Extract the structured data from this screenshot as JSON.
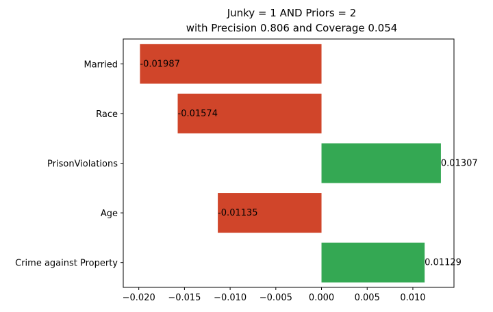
{
  "chart_data": {
    "type": "bar",
    "orientation": "horizontal",
    "title": [
      "Junky = 1 AND Priors = 2",
      "with Precision 0.806 and Coverage 0.054"
    ],
    "categories": [
      "Married",
      "Race",
      "PrisonViolations",
      "Age",
      "Crime against Property"
    ],
    "values": [
      -0.01987,
      -0.01574,
      0.01307,
      -0.01135,
      0.01129
    ],
    "value_labels": [
      "-0.01987",
      "-0.01574",
      "0.01307",
      "-0.01135",
      "0.01129"
    ],
    "xlim": [
      -0.0217,
      0.0145
    ],
    "xticks": [
      -0.02,
      -0.015,
      -0.01,
      -0.005,
      0.0,
      0.005,
      0.01
    ],
    "xtick_labels": [
      "−0.020",
      "−0.015",
      "−0.010",
      "−0.005",
      "0.000",
      "0.005",
      "0.010"
    ],
    "xlabel": "",
    "ylabel": "",
    "grid": false,
    "colors": {
      "negative": "#d0452a",
      "positive": "#34a853"
    }
  }
}
